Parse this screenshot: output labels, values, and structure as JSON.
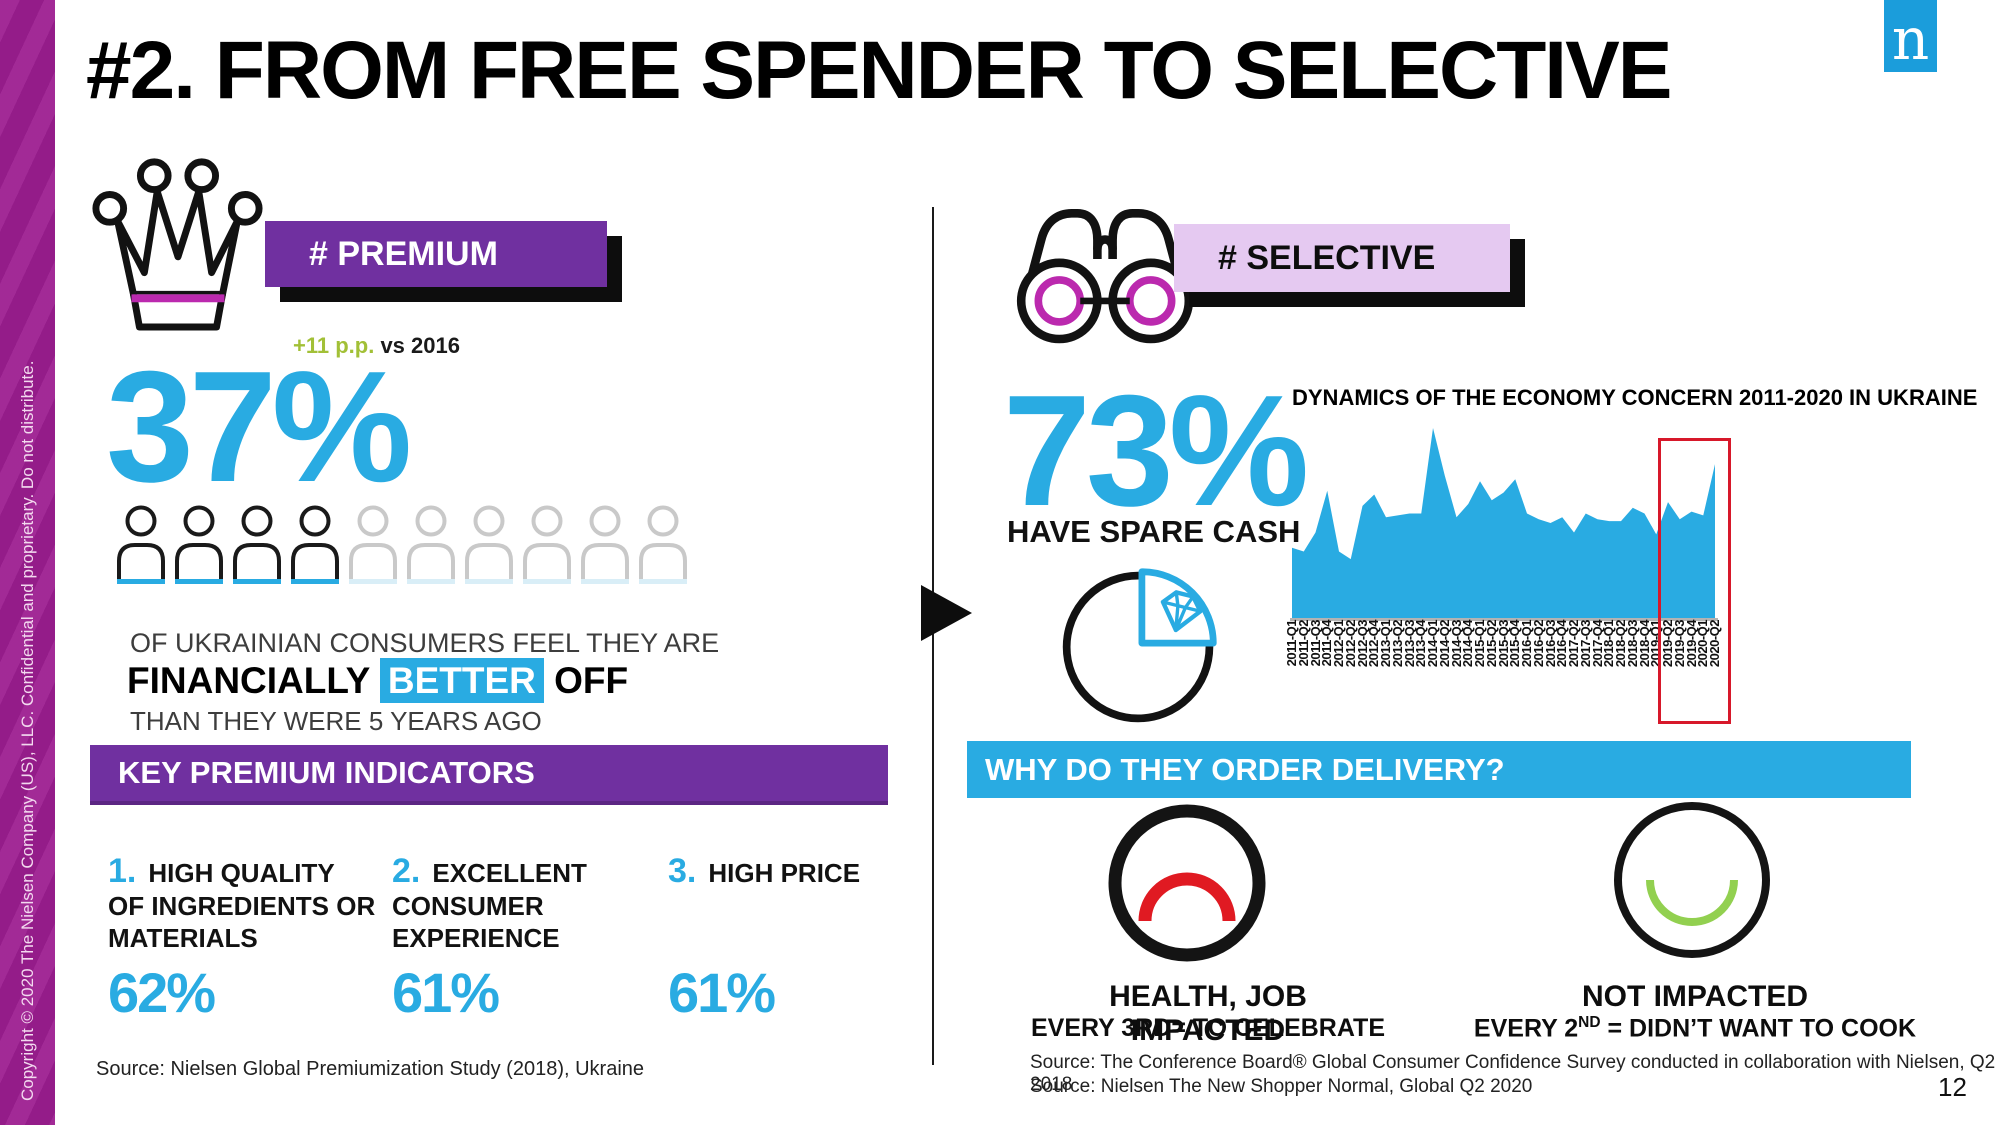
{
  "slide": {
    "title": "#2. FROM FREE SPENDER TO SELECTIVE",
    "page_number": "12"
  },
  "logo": {
    "letter": "n",
    "color": "#1b9ddb"
  },
  "sidebar": {
    "copyright": "Copyright © 2020 The Nielsen Company (US), LLC. Confidential and proprietary. Do not distribute."
  },
  "premium": {
    "banner": "# PREMIUM",
    "delta_green": "+11 p.p.",
    "delta_rest": " vs 2016",
    "stat": "37%",
    "people": {
      "total": 10,
      "filled": 4
    },
    "line1": "OF UKRAINIAN CONSUMERS FEEL THEY ARE",
    "line2_a": "FINANCIALLY ",
    "line2_highlight": "BETTER",
    "line2_b": " OFF",
    "line3": "THAN THEY WERE 5 YEARS AGO",
    "key_bar": "KEY PREMIUM INDICATORS",
    "indicators": [
      {
        "num": "1.",
        "label_lines": [
          "HIGH QUALITY",
          "OF INGREDIENTS OR",
          "MATERIALS"
        ],
        "value": "62%"
      },
      {
        "num": "2.",
        "label_lines": [
          "EXCELLENT",
          "CONSUMER",
          "EXPERIENCE"
        ],
        "value": "61%"
      },
      {
        "num": "3.",
        "label_lines": [
          "HIGH PRICE"
        ],
        "value": "61%"
      }
    ],
    "source": "Source: Nielsen Global Premiumization Study (2018), Ukraine"
  },
  "selective": {
    "banner": "# SELECTIVE",
    "stat": "73%",
    "stat_caption": "HAVE SPARE CASH",
    "delivery_bar": "WHY DO THEY ORDER DELIVERY?",
    "impacted": {
      "title": "HEALTH, JOB IMPACTED",
      "subtitle": "EVERY 3RD= TO CELEBRATE"
    },
    "not_impacted": {
      "title": "NOT IMPACTED",
      "subtitle_prefix": "EVERY 2",
      "subtitle_sup": "ND",
      "subtitle_suffix": " = DIDN’T WANT TO COOK"
    },
    "sources": [
      "Source: The Conference Board® Global Consumer Confidence Survey conducted in collaboration with Nielsen, Q2 2018",
      "Source: Nielsen The New Shopper Normal, Global Q2 2020"
    ]
  },
  "chart_data": {
    "type": "area",
    "title": "DYNAMICS OF THE ECONOMY CONCERN 2011-2020 IN UKRAINE",
    "x": [
      "2011-Q1",
      "2011-Q2",
      "2011-Q3",
      "2011-Q4",
      "2012-Q1",
      "2012-Q2",
      "2012-Q3",
      "2012-Q4",
      "2013-Q1",
      "2013-Q2",
      "2013-Q3",
      "2013-Q4",
      "2014-Q1",
      "2014-Q2",
      "2014-Q3",
      "2014-Q4",
      "2015-Q1",
      "2015-Q2",
      "2015-Q3",
      "2015-Q4",
      "2016-Q1",
      "2016-Q2",
      "2016-Q3",
      "2016-Q4",
      "2017-Q2",
      "2017-Q3",
      "2017-Q4",
      "2018-Q1",
      "2018-Q2",
      "2018-Q3",
      "2018-Q4",
      "2019-Q1",
      "2019-Q2",
      "2019-Q3",
      "2019-Q4",
      "2020-Q1",
      "2020-Q2"
    ],
    "values": [
      37,
      35,
      45,
      67,
      35,
      31,
      59,
      65,
      53,
      54,
      55,
      55,
      100,
      75,
      53,
      60,
      72,
      62,
      66,
      73,
      55,
      52,
      50,
      53,
      45,
      55,
      52,
      51,
      51,
      58,
      55,
      44,
      61,
      52,
      56,
      54,
      81
    ],
    "ylim": [
      0,
      100
    ],
    "xlabel": "",
    "ylabel": "",
    "grid": false,
    "legend": false,
    "fill_color": "#29abe2",
    "highlight_range": [
      "2019-Q2",
      "2020-Q2"
    ],
    "highlight_box_color": "#d7182a",
    "x_labels_rotated_deg": 90
  },
  "colors": {
    "accent_blue": "#29abe2",
    "purple": "#7030a0",
    "lavender": "#e5c9f1",
    "sidebar_magenta": "#9c1d90",
    "crown_magenta": "#bb29ae",
    "delta_green": "#a2c037",
    "impacted_red": "#e01a22",
    "not_impacted_green": "#92d050"
  }
}
